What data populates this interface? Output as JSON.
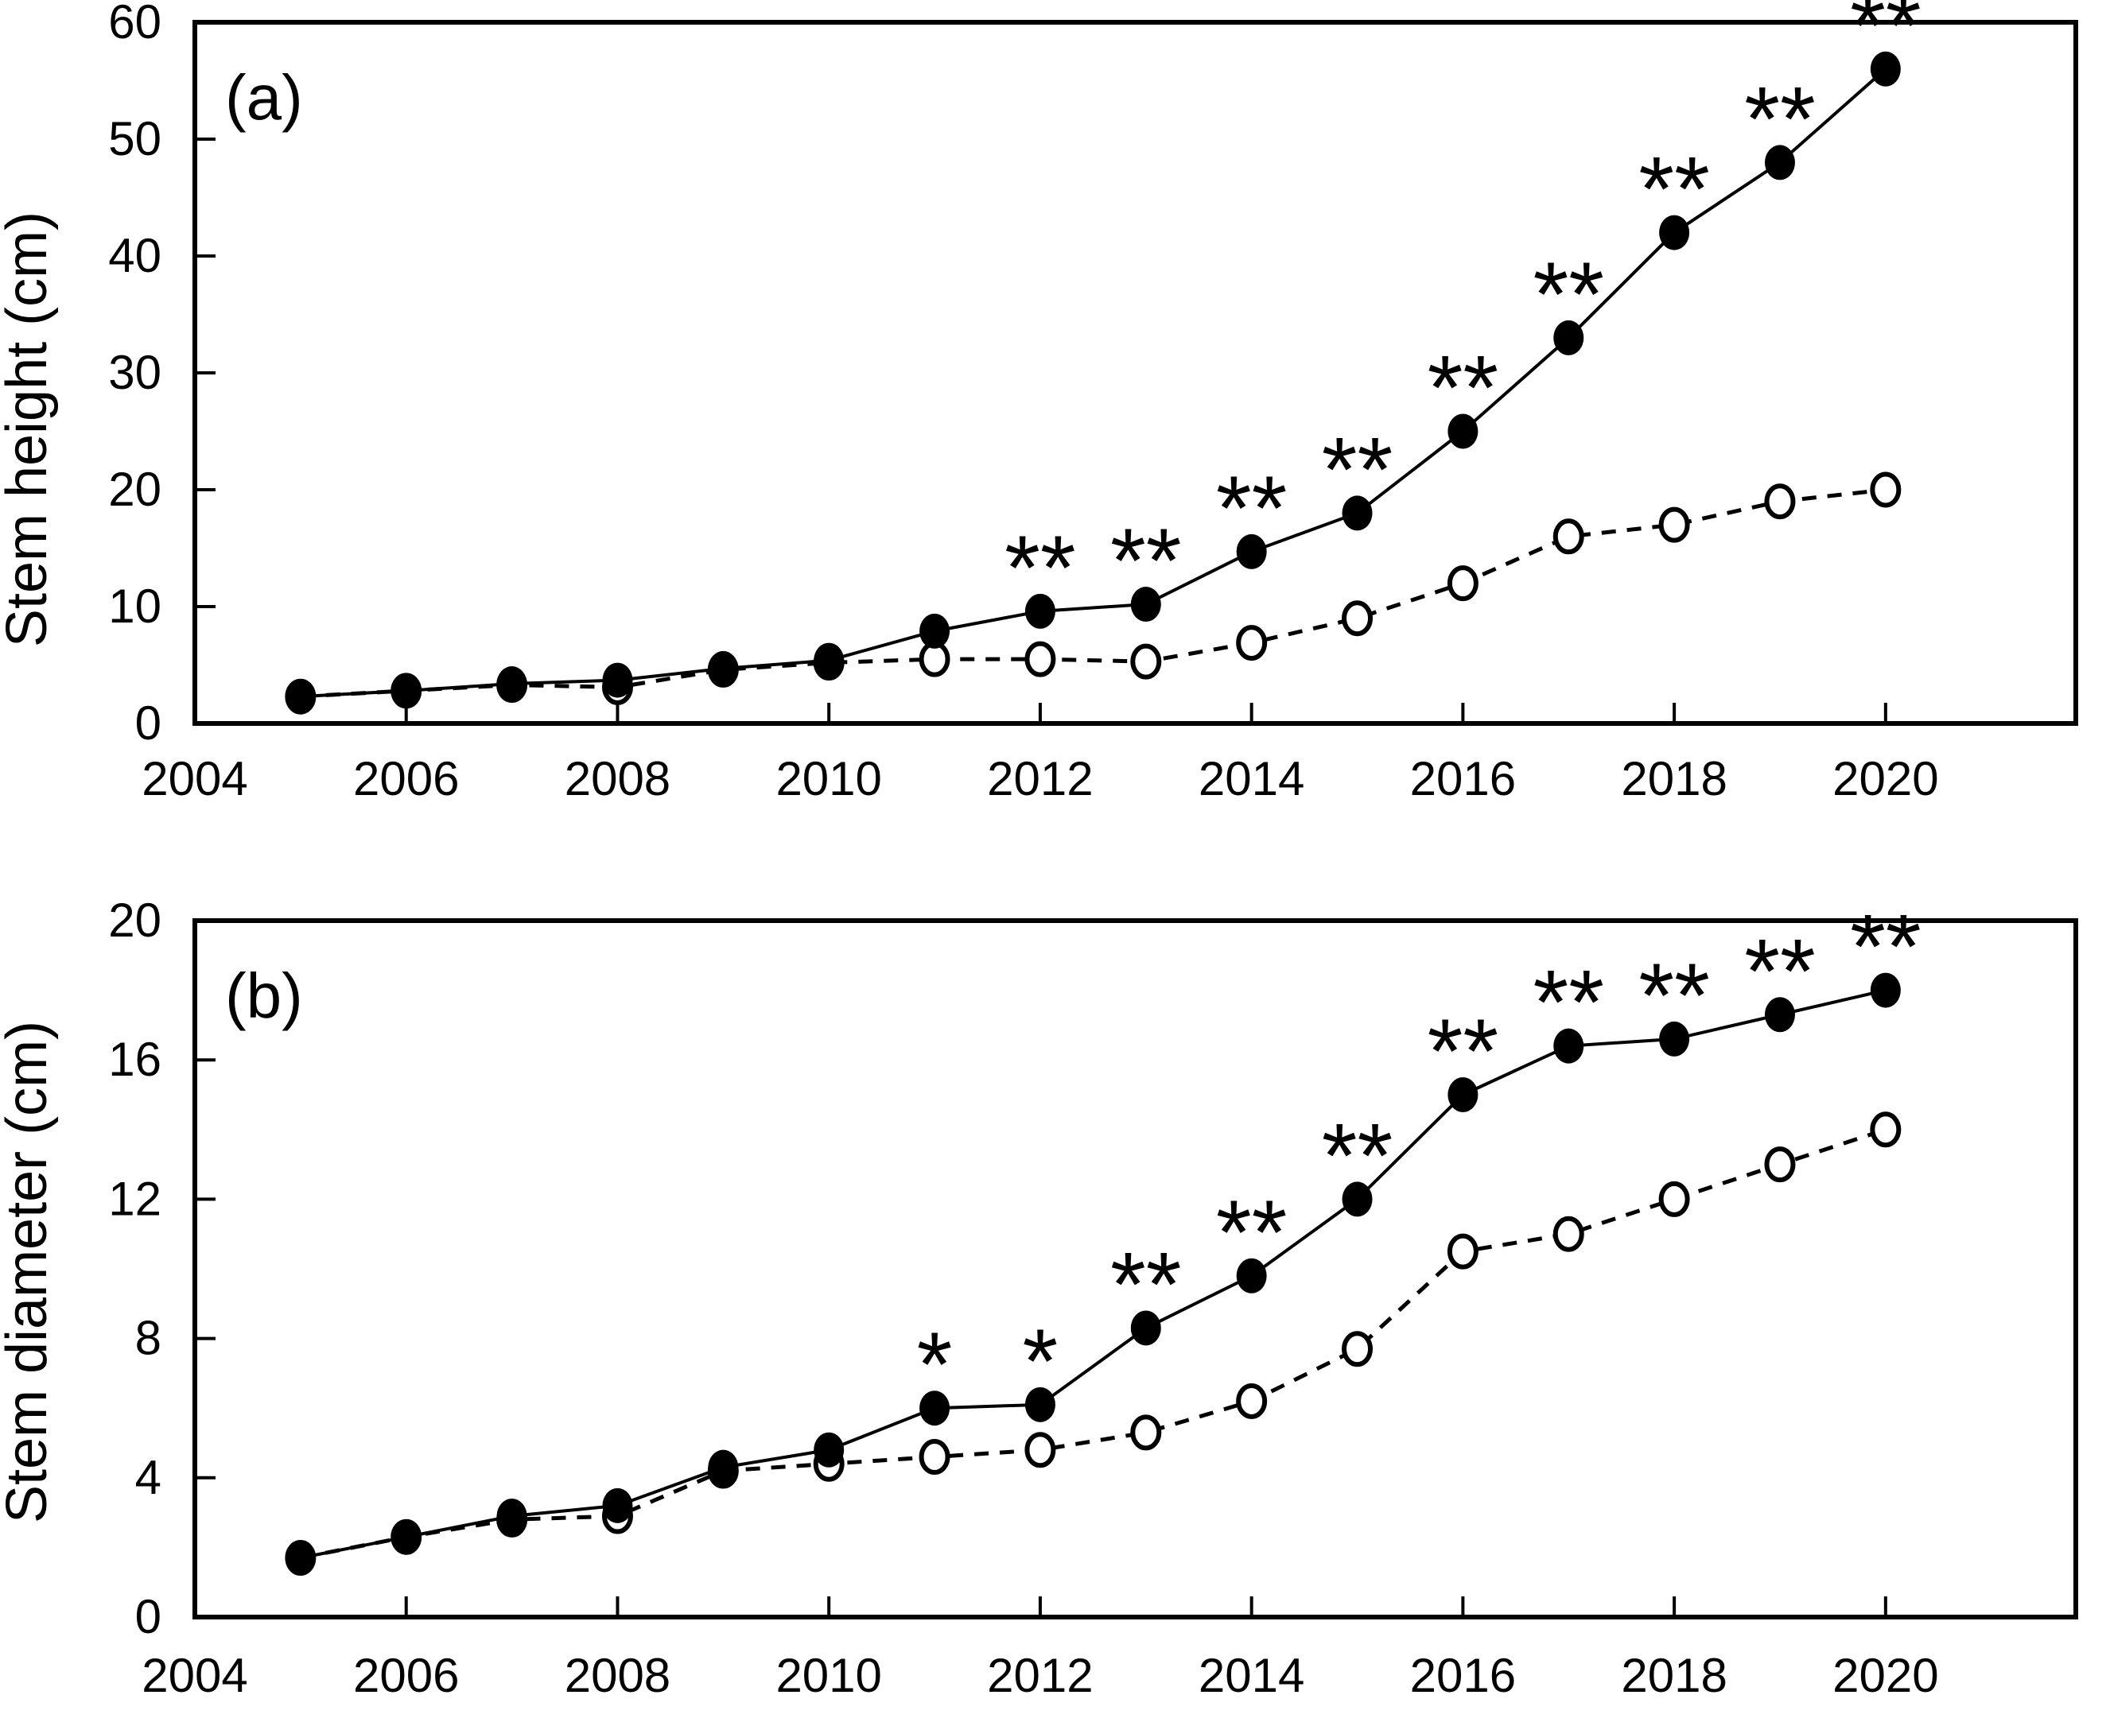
{
  "figure": {
    "background": "#ffffff",
    "ink_color": "#000000",
    "panel_labels": [
      "(a)",
      "(b)"
    ]
  },
  "chart_data": [
    {
      "type": "line",
      "panel_label": "(a)",
      "title": "",
      "xlabel": "",
      "ylabel": "Stem height (cm)",
      "ylim": [
        0,
        60
      ],
      "yticks": [
        0,
        10,
        20,
        30,
        40,
        50,
        60
      ],
      "xlim": [
        2004,
        2021.8
      ],
      "xticks": [
        2004,
        2006,
        2008,
        2010,
        2012,
        2014,
        2016,
        2018,
        2020
      ],
      "xtick_labels": [
        "2004",
        "2006",
        "2008",
        "2010",
        "2012",
        "2014",
        "2016",
        "2018",
        "2020"
      ],
      "grid": false,
      "legend_position": "none",
      "x": [
        2005,
        2006,
        2007,
        2008,
        2009,
        2010,
        2011,
        2012,
        2013,
        2014,
        2015,
        2016,
        2017,
        2018,
        2019,
        2020
      ],
      "series": [
        {
          "name": "filled-circle solid line",
          "marker": "filled-circle",
          "line": "solid",
          "values": [
            2.3,
            2.8,
            3.4,
            3.7,
            4.7,
            5.4,
            7.9,
            9.6,
            10.2,
            14.7,
            18,
            25,
            33,
            42,
            48,
            56
          ]
        },
        {
          "name": "open-circle dashed line",
          "marker": "open-circle",
          "line": "dashed",
          "values": [
            2.3,
            2.8,
            3.3,
            3.1,
            4.6,
            5.2,
            5.5,
            5.5,
            5.3,
            6.9,
            9,
            12,
            16,
            17,
            19,
            20
          ]
        }
      ],
      "annotations": [
        {
          "x": 2012,
          "text": "**"
        },
        {
          "x": 2013,
          "text": "**"
        },
        {
          "x": 2014,
          "text": "**"
        },
        {
          "x": 2015,
          "text": "**"
        },
        {
          "x": 2016,
          "text": "**"
        },
        {
          "x": 2017,
          "text": "**"
        },
        {
          "x": 2018,
          "text": "**"
        },
        {
          "x": 2019,
          "text": "**"
        },
        {
          "x": 2020,
          "text": "**"
        }
      ]
    },
    {
      "type": "line",
      "panel_label": "(b)",
      "title": "",
      "xlabel": "",
      "ylabel": "Stem diameter (cm)",
      "ylim": [
        0,
        20
      ],
      "yticks": [
        0,
        4,
        8,
        12,
        16,
        20
      ],
      "xlim": [
        2004,
        2021.8
      ],
      "xticks": [
        2004,
        2006,
        2008,
        2010,
        2012,
        2014,
        2016,
        2018,
        2020
      ],
      "xtick_labels": [
        "2004",
        "2006",
        "2008",
        "2010",
        "2012",
        "2014",
        "2016",
        "2018",
        "2020"
      ],
      "grid": false,
      "legend_position": "none",
      "x": [
        2005,
        2006,
        2007,
        2008,
        2009,
        2010,
        2011,
        2012,
        2013,
        2014,
        2015,
        2016,
        2017,
        2018,
        2019,
        2020
      ],
      "series": [
        {
          "name": "filled-circle solid line",
          "marker": "filled-circle",
          "line": "solid",
          "values": [
            1.7,
            2.3,
            2.9,
            3.2,
            4.3,
            4.8,
            6.0,
            6.1,
            8.3,
            9.8,
            12,
            15,
            16.4,
            16.6,
            17.3,
            18
          ]
        },
        {
          "name": "open-circle dashed line",
          "marker": "open-circle",
          "line": "dashed",
          "values": [
            1.7,
            2.3,
            2.8,
            2.9,
            4.2,
            4.4,
            4.6,
            4.8,
            5.3,
            6.2,
            7.7,
            10.5,
            11,
            12,
            13,
            14
          ]
        }
      ],
      "annotations": [
        {
          "x": 2011,
          "text": "*"
        },
        {
          "x": 2012,
          "text": "*"
        },
        {
          "x": 2013,
          "text": "**"
        },
        {
          "x": 2014,
          "text": "**"
        },
        {
          "x": 2015,
          "text": "**"
        },
        {
          "x": 2016,
          "text": "**"
        },
        {
          "x": 2017,
          "text": "**"
        },
        {
          "x": 2018,
          "text": "**"
        },
        {
          "x": 2019,
          "text": "**"
        },
        {
          "x": 2020,
          "text": "**"
        }
      ]
    }
  ]
}
